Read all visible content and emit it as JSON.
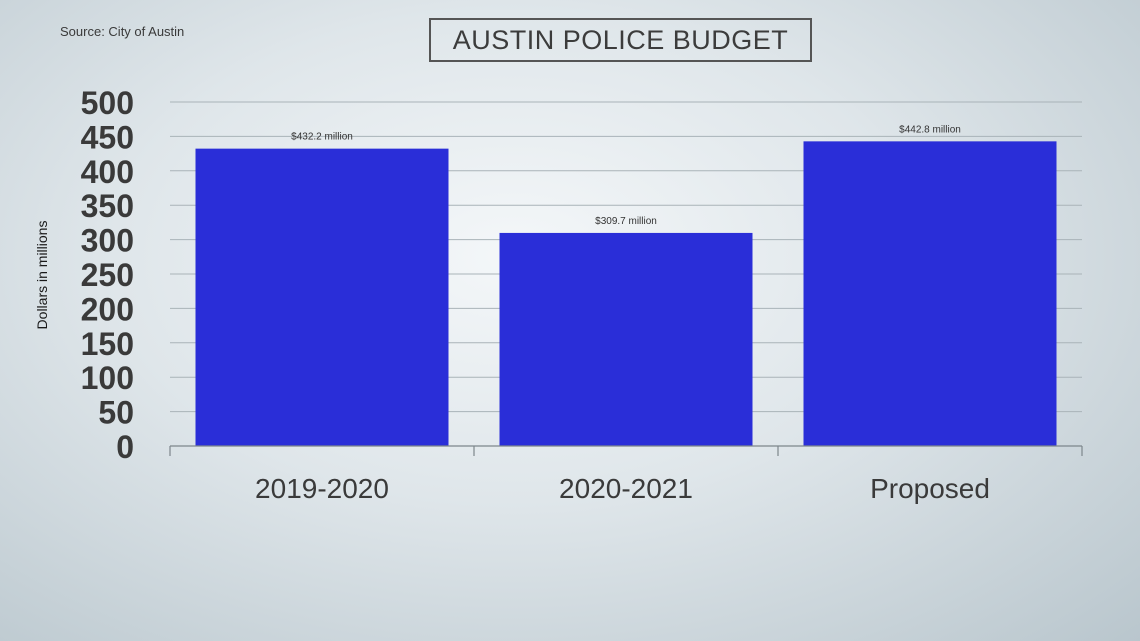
{
  "source": "Source: City of Austin",
  "title": "AUSTIN POLICE BUDGET",
  "colors": {
    "bar": "#2a2ed8",
    "grid": "#a9b3b8",
    "axis": "#7d868b"
  },
  "chart_data": {
    "type": "bar",
    "title": "AUSTIN POLICE BUDGET",
    "ylabel": "Dollars in millions",
    "xlabel": "",
    "categories": [
      "2019-2020",
      "2020-2021",
      "Proposed"
    ],
    "values": [
      432.2,
      309.7,
      442.8
    ],
    "data_labels": [
      "$432.2 million",
      "$309.7 million",
      "$442.8 million"
    ],
    "ylim": [
      0,
      500
    ],
    "yticks": [
      0,
      50,
      100,
      150,
      200,
      250,
      300,
      350,
      400,
      450,
      500
    ],
    "grid": true,
    "legend": "none"
  }
}
